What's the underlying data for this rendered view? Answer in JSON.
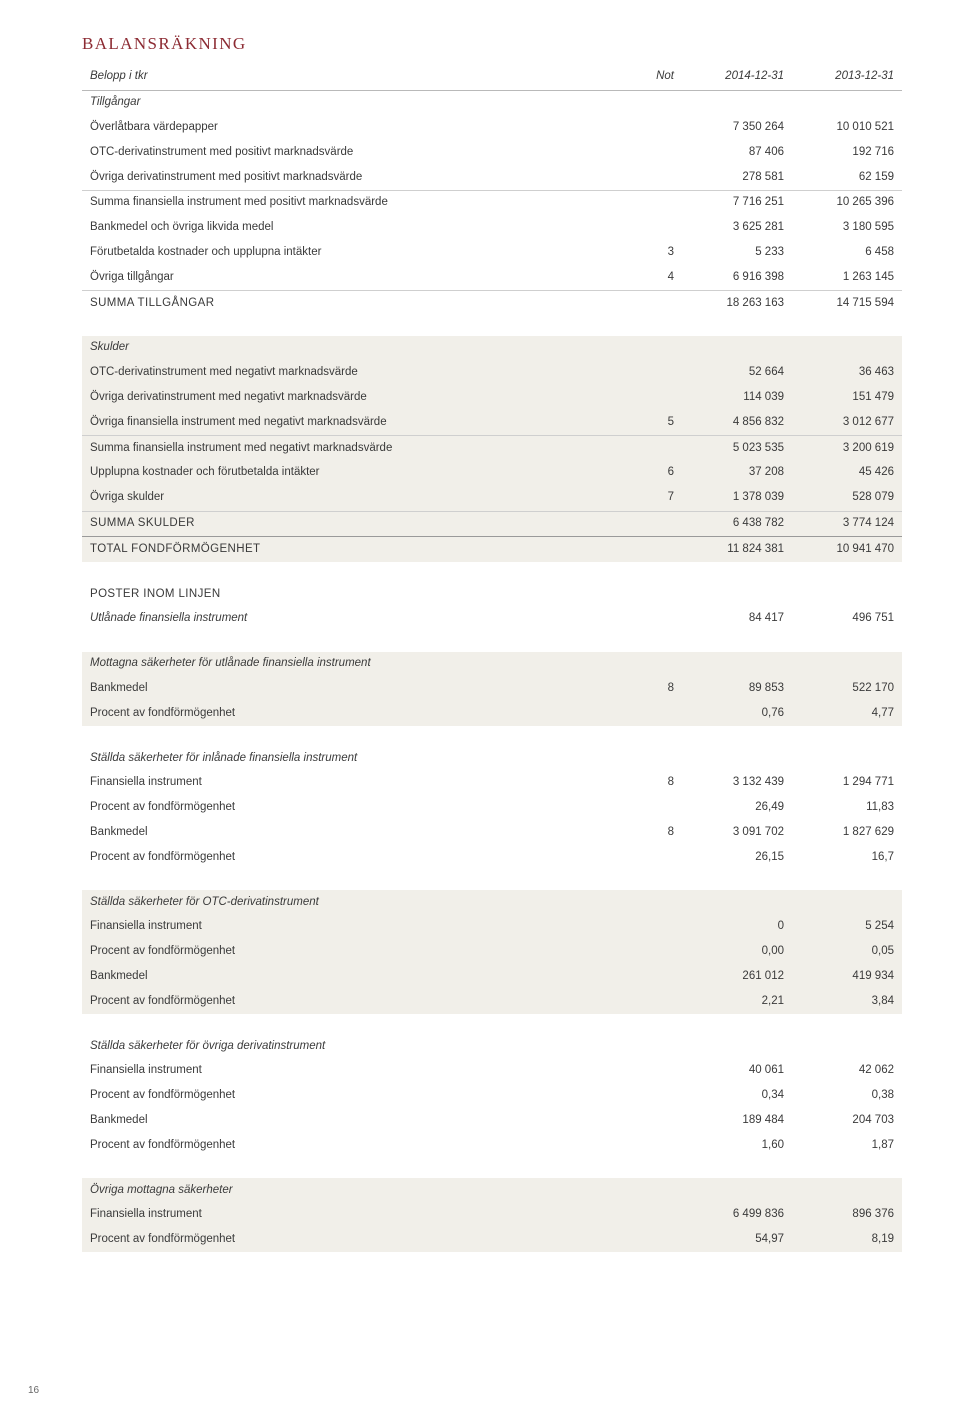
{
  "title": "BALANSRÄKNING",
  "header": {
    "c0": "Belopp i tkr",
    "c1": "Not",
    "c2": "2014-12-31",
    "c3": "2013-12-31"
  },
  "page_number": "16",
  "colors": {
    "title": "#8c2b33",
    "text": "#3a3a3a",
    "shade_bg": "#f1efe9",
    "rule": "#b9b9b9"
  },
  "font": {
    "title_size_pt": 13,
    "body_size_pt": 8.5
  },
  "tillgangar_label": "Tillgångar",
  "tillgangar_rows": [
    {
      "label": "Överlåtbara värdepapper",
      "v1": "7 350 264",
      "v2": "10 010 521"
    },
    {
      "label": "OTC-derivatinstrument med positivt marknadsvärde",
      "v1": "87 406",
      "v2": "192 716"
    },
    {
      "label": "Övriga derivatinstrument med positivt marknadsvärde",
      "v1": "278 581",
      "v2": "62 159"
    },
    {
      "label": "Summa finansiella instrument med positivt marknadsvärde",
      "v1": "7 716 251",
      "v2": "10 265 396",
      "sum": true
    },
    {
      "label": "Bankmedel och övriga likvida medel",
      "v1": "3 625 281",
      "v2": "3 180 595"
    },
    {
      "label": "Förutbetalda kostnader och upplupna intäkter",
      "note": "3",
      "v1": "5 233",
      "v2": "6 458"
    },
    {
      "label": "Övriga tillgångar",
      "note": "4",
      "v1": "6 916 398",
      "v2": "1 263 145"
    },
    {
      "label": "SUMMA TILLGÅNGAR",
      "v1": "18 263 163",
      "v2": "14 715 594",
      "sum": true,
      "caps": true
    }
  ],
  "skulder_label": "Skulder",
  "skulder_rows": [
    {
      "label": "OTC-derivatinstrument med negativt marknadsvärde",
      "v1": "52 664",
      "v2": "36 463"
    },
    {
      "label": "Övriga derivatinstrument med negativt marknadsvärde",
      "v1": "114 039",
      "v2": "151 479"
    },
    {
      "label": "Övriga finansiella instrument med negativt marknadsvärde",
      "note": "5",
      "v1": "4 856 832",
      "v2": "3 012 677"
    },
    {
      "label": "Summa finansiella instrument med negativt marknadsvärde",
      "v1": "5 023 535",
      "v2": "3 200 619",
      "sum": true
    },
    {
      "label": "Upplupna kostnader och förutbetalda intäkter",
      "note": "6",
      "v1": "37 208",
      "v2": "45 426"
    },
    {
      "label": "Övriga skulder",
      "note": "7",
      "v1": "1 378 039",
      "v2": "528 079"
    },
    {
      "label": "SUMMA SKULDER",
      "v1": "6 438 782",
      "v2": "3 774 124",
      "sum": true,
      "caps": true
    },
    {
      "label": "TOTAL FONDFÖRMÖGENHET",
      "v1": "11 824 381",
      "v2": "10 941 470",
      "heavy": true,
      "caps": true
    }
  ],
  "poster_title": "POSTER INOM LINJEN",
  "utlanade": {
    "label": "Utlånade finansiella instrument",
    "v1": "84 417",
    "v2": "496 751"
  },
  "mottagna_title": "Mottagna säkerheter för utlånade finansiella instrument",
  "mottagna_rows": [
    {
      "label": "Bankmedel",
      "note": "8",
      "v1": "89 853",
      "v2": "522 170"
    },
    {
      "label": "Procent av fondförmögenhet",
      "v1": "0,76",
      "v2": "4,77",
      "indent": true
    }
  ],
  "stallda_in_title": "Ställda säkerheter för inlånade finansiella instrument",
  "stallda_in_rows": [
    {
      "label": "Finansiella instrument",
      "note": "8",
      "v1": "3 132 439",
      "v2": "1 294 771"
    },
    {
      "label": "Procent av fondförmögenhet",
      "v1": "26,49",
      "v2": "11,83",
      "indent": true
    },
    {
      "label": "Bankmedel",
      "note": "8",
      "v1": "3 091 702",
      "v2": "1 827 629"
    },
    {
      "label": "Procent av fondförmögenhet",
      "v1": "26,15",
      "v2": "16,7",
      "indent": true
    }
  ],
  "stallda_otc_title": "Ställda säkerheter för OTC-derivatinstrument",
  "stallda_otc_rows": [
    {
      "label": "Finansiella instrument",
      "v1": "0",
      "v2": "5 254"
    },
    {
      "label": "Procent av fondförmögenhet",
      "v1": "0,00",
      "v2": "0,05",
      "indent": true
    },
    {
      "label": "Bankmedel",
      "v1": "261 012",
      "v2": "419 934"
    },
    {
      "label": "Procent av fondförmögenhet",
      "v1": "2,21",
      "v2": "3,84",
      "indent": true
    }
  ],
  "stallda_ovr_title": "Ställda säkerheter för övriga derivatinstrument",
  "stallda_ovr_rows": [
    {
      "label": "Finansiella instrument",
      "v1": "40 061",
      "v2": "42 062"
    },
    {
      "label": "Procent av fondförmögenhet",
      "v1": "0,34",
      "v2": "0,38",
      "indent": true
    },
    {
      "label": "Bankmedel",
      "v1": "189 484",
      "v2": "204 703"
    },
    {
      "label": "Procent av fondförmögenhet",
      "v1": "1,60",
      "v2": "1,87",
      "indent": true
    }
  ],
  "ovriga_mott_title": "Övriga mottagna säkerheter",
  "ovriga_mott_rows": [
    {
      "label": "Finansiella instrument",
      "v1": "6 499 836",
      "v2": "896 376"
    },
    {
      "label": "Procent av fondförmögenhet",
      "v1": "54,97",
      "v2": "8,19",
      "indent": true
    }
  ]
}
